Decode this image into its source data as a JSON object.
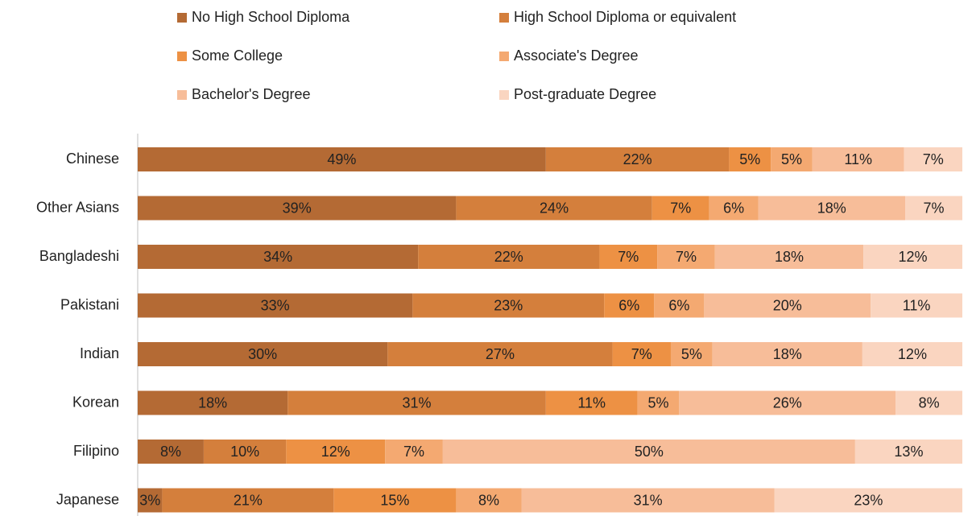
{
  "chart_data": {
    "type": "stacked-bar-100",
    "orientation": "horizontal",
    "categories": [
      "Chinese",
      "Other Asians",
      "Bangladeshi",
      "Pakistani",
      "Indian",
      "Korean",
      "Filipino",
      "Japanese"
    ],
    "series": [
      {
        "name": "No High School Diploma",
        "color": "#b46a34",
        "values": [
          49,
          39,
          34,
          33,
          30,
          18,
          8,
          3
        ],
        "value_labels": [
          "49%",
          "39%",
          "34%",
          "33%",
          "30%",
          "18%",
          "8%",
          "3%"
        ]
      },
      {
        "name": "High School Diploma or equivalent",
        "color": "#d47f3c",
        "values": [
          22,
          24,
          22,
          23,
          27,
          31,
          10,
          21
        ],
        "value_labels": [
          "22%",
          "24%",
          "22%",
          "23%",
          "27%",
          "31%",
          "10%",
          "21%"
        ]
      },
      {
        "name": "Some College",
        "color": "#ed9144",
        "values": [
          5,
          7,
          7,
          6,
          7,
          11,
          12,
          15
        ],
        "value_labels": [
          "5%",
          "7%",
          "7%",
          "6%",
          "7%",
          "11%",
          "12%",
          "15%"
        ]
      },
      {
        "name": "Associate's Degree",
        "color": "#f4a971",
        "values": [
          5,
          6,
          7,
          6,
          5,
          5,
          7,
          8
        ],
        "value_labels": [
          "5%",
          "6%",
          "7%",
          "6%",
          "5%",
          "5%",
          "7%",
          "8%"
        ]
      },
      {
        "name": "Bachelor's Degree",
        "color": "#f7bd99",
        "values": [
          11,
          18,
          18,
          20,
          18,
          26,
          50,
          31
        ],
        "value_labels": [
          "11%",
          "18%",
          "18%",
          "20%",
          "18%",
          "26%",
          "50%",
          "31%"
        ]
      },
      {
        "name": "Post-graduate Degree",
        "color": "#fad5c0",
        "values": [
          7,
          7,
          12,
          11,
          12,
          8,
          13,
          23
        ],
        "value_labels": [
          "7%",
          "7%",
          "12%",
          "11%",
          "12%",
          "8%",
          "13%",
          "23%"
        ]
      }
    ]
  }
}
